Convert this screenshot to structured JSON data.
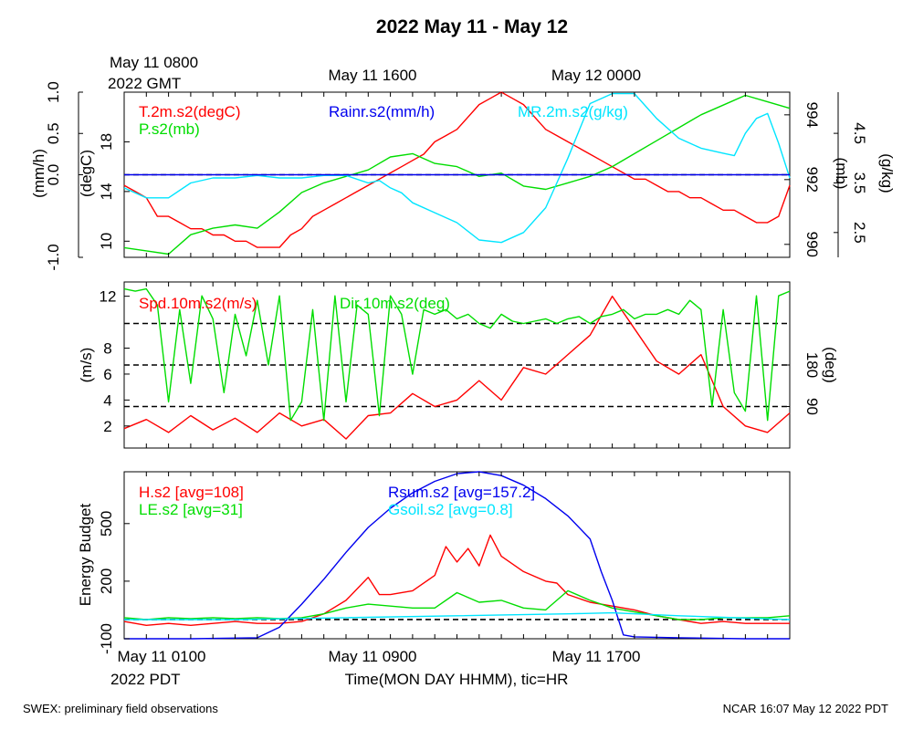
{
  "title": "2022 May 11 - May 12",
  "top_time_labels": [
    "May 11 1600",
    "May 12 0000"
  ],
  "start_gmt": {
    "line1": "May 11 0800",
    "line2": "2022 GMT"
  },
  "bottom_time_labels": [
    "May 11 0100",
    "May 11 0900",
    "May 11 1700"
  ],
  "start_pdt": "2022 PDT",
  "xlabel": "Time(MON DAY HHMM), tic=HR",
  "footer_left": "SWEX: preliminary field observations",
  "footer_right": "NCAR 16:07 May 12 2022 PDT",
  "colors": {
    "red": "#ff0000",
    "green": "#00dd00",
    "blue": "#0000ee",
    "cyan": "#00e5ff",
    "black": "#000000"
  },
  "chart_data": [
    {
      "type": "line",
      "panel": "met",
      "x_unit": "hours since May 11 0100 PDT",
      "xlim": [
        0,
        30
      ],
      "axes": {
        "left_outer": {
          "label": "(mm/h)",
          "ticks": [
            "-1.0",
            "0.0",
            "0.5",
            "1.0"
          ],
          "ylim": [
            -1.0,
            1.0
          ]
        },
        "left_inner": {
          "label": "(degC)",
          "ticks": [
            "10",
            "14",
            "18"
          ],
          "ylim": [
            8.7,
            22.0
          ]
        },
        "right_inner": {
          "label": "(mb)",
          "ticks": [
            "990",
            "992",
            "994"
          ],
          "ylim": [
            989.6,
            994.7
          ]
        },
        "right_outer": {
          "label": "(g/kg)",
          "ticks": [
            "2.5",
            "3.5",
            "4.5"
          ],
          "ylim": [
            2.0,
            5.33
          ]
        }
      },
      "series": [
        {
          "name": "T.2m.s2(degC)",
          "color": "#ff0000",
          "axis": "left_inner",
          "x": [
            0,
            0.5,
            1,
            1.5,
            2,
            2.5,
            3,
            3.5,
            4,
            4.5,
            5,
            5.5,
            6,
            6.5,
            7,
            7.5,
            8,
            8.5,
            9,
            9.5,
            10,
            10.5,
            11,
            11.5,
            12,
            12.5,
            13,
            13.5,
            14,
            14.5,
            15,
            15.5,
            16,
            16.5,
            17,
            17.5,
            18,
            18.5,
            19,
            19.5,
            20,
            20.5,
            21,
            21.5,
            22,
            22.5,
            23,
            23.5,
            24,
            24.5,
            25,
            25.5,
            26,
            26.5,
            27,
            27.5,
            28,
            28.5,
            29,
            29.5,
            30
          ],
          "y": [
            14.5,
            14.0,
            13.5,
            12.0,
            12.0,
            11.5,
            11.0,
            11.0,
            10.5,
            10.5,
            10.0,
            10.0,
            9.5,
            9.5,
            9.5,
            10.5,
            11.0,
            12.0,
            12.5,
            13.0,
            13.5,
            14.0,
            14.5,
            15.0,
            15.5,
            16.0,
            16.5,
            17.0,
            18.0,
            18.5,
            19.0,
            20.0,
            21.0,
            21.5,
            22.0,
            21.5,
            21.0,
            20.0,
            19.0,
            18.5,
            18.0,
            17.5,
            17.0,
            16.5,
            16.0,
            15.5,
            15.0,
            15.0,
            14.5,
            14.0,
            14.0,
            13.5,
            13.5,
            13.0,
            12.5,
            12.5,
            12.0,
            11.5,
            11.5,
            12.0,
            14.5
          ]
        },
        {
          "name": "P.s2(mb)",
          "color": "#00dd00",
          "axis": "right_inner",
          "x": [
            0,
            1,
            2,
            3,
            4,
            5,
            6,
            7,
            8,
            9,
            10,
            11,
            12,
            13,
            14,
            15,
            16,
            17,
            18,
            19,
            20,
            21,
            22,
            23,
            24,
            25,
            26,
            27,
            28,
            29,
            30
          ],
          "y": [
            989.9,
            989.8,
            989.7,
            990.3,
            990.5,
            990.6,
            990.5,
            991.0,
            991.6,
            991.9,
            992.1,
            992.3,
            992.7,
            992.8,
            992.5,
            992.4,
            992.1,
            992.2,
            991.8,
            991.7,
            991.9,
            992.1,
            992.4,
            992.8,
            993.2,
            993.6,
            994.0,
            994.3,
            994.6,
            994.4,
            994.2
          ]
        },
        {
          "name": "MR.2m.s2(g/kg)",
          "color": "#00e5ff",
          "axis": "right_outer",
          "x": [
            0,
            1,
            2,
            3,
            4,
            5,
            6,
            7,
            8,
            9,
            10,
            11,
            11.5,
            12,
            12.5,
            13,
            14,
            15,
            16,
            17,
            18,
            19,
            19.5,
            20,
            21,
            22,
            23,
            24,
            25,
            26,
            27,
            27.5,
            28,
            28.5,
            29,
            29.5,
            30
          ],
          "y": [
            3.4,
            3.2,
            3.2,
            3.5,
            3.6,
            3.6,
            3.65,
            3.6,
            3.6,
            3.65,
            3.65,
            3.5,
            3.55,
            3.4,
            3.3,
            3.1,
            2.9,
            2.7,
            2.35,
            2.3,
            2.5,
            3.0,
            3.5,
            4.0,
            5.1,
            5.3,
            5.3,
            4.8,
            4.4,
            4.2,
            4.1,
            4.05,
            4.5,
            4.8,
            4.9,
            4.3,
            3.6
          ]
        },
        {
          "name": "Rainr.s2(mm/h)",
          "color": "#0000ee",
          "axis": "left_outer",
          "x": [
            0,
            30
          ],
          "y": [
            0,
            0
          ]
        }
      ],
      "reference_lines": [
        {
          "axis": "left_outer",
          "y": 0.0
        }
      ]
    },
    {
      "type": "line",
      "panel": "wind",
      "x_unit": "hours since May 11 0100 PDT",
      "xlim": [
        0,
        30
      ],
      "axes": {
        "left": {
          "label": "(m/s)",
          "ticks": [
            "2",
            "4",
            "6",
            "8",
            "12"
          ],
          "ylim": [
            0.3,
            13.1
          ]
        },
        "right": {
          "label": "(deg)",
          "ticks": [
            "90",
            "180"
          ],
          "ylim": [
            0,
            360
          ]
        }
      },
      "series": [
        {
          "name": "Spd.10m.s2(m/s)",
          "color": "#ff0000",
          "axis": "left",
          "x": [
            0,
            1,
            2,
            3,
            4,
            5,
            6,
            7,
            8,
            9,
            10,
            11,
            12,
            13,
            14,
            15,
            16,
            17,
            18,
            19,
            20,
            21,
            22,
            23,
            24,
            25,
            26,
            27,
            28,
            29,
            30
          ],
          "y": [
            1.8,
            2.5,
            1.5,
            2.8,
            1.7,
            2.6,
            1.5,
            3.0,
            2.0,
            2.5,
            1.0,
            2.8,
            3.0,
            4.5,
            3.5,
            4.0,
            5.5,
            4.0,
            6.5,
            6.0,
            7.5,
            9.0,
            12.0,
            9.5,
            7.0,
            6.0,
            7.5,
            3.5,
            2.0,
            1.5,
            3.0
          ]
        },
        {
          "name": "Dir.10m.s2(deg)",
          "color": "#00dd00",
          "axis": "right",
          "x": [
            0,
            0.5,
            1,
            1.5,
            2,
            2.5,
            3,
            3.5,
            4,
            4.5,
            5,
            5.5,
            6,
            6.5,
            7,
            7.5,
            8,
            8.5,
            9,
            9.5,
            10,
            10.5,
            11,
            11.5,
            12,
            12.5,
            13,
            13.5,
            14,
            14.5,
            15,
            15.5,
            16,
            16.5,
            17,
            17.5,
            18,
            18.5,
            19,
            19.5,
            20,
            20.5,
            21,
            21.5,
            22,
            22.5,
            23,
            23.5,
            24,
            24.5,
            25,
            25.5,
            26,
            26.5,
            27,
            27.5,
            28,
            28.5,
            29,
            29.5,
            30
          ],
          "y": [
            345,
            340,
            345,
            310,
            100,
            300,
            140,
            330,
            280,
            120,
            290,
            200,
            320,
            180,
            330,
            60,
            100,
            300,
            60,
            330,
            100,
            310,
            290,
            70,
            330,
            290,
            160,
            300,
            290,
            300,
            280,
            290,
            270,
            260,
            290,
            275,
            270,
            275,
            280,
            270,
            280,
            285,
            270,
            285,
            290,
            300,
            280,
            290,
            290,
            300,
            290,
            320,
            300,
            90,
            300,
            120,
            80,
            330,
            60,
            330,
            340
          ]
        }
      ],
      "reference_lines": [
        {
          "axis": "right",
          "y": 90
        },
        {
          "axis": "right",
          "y": 180
        },
        {
          "axis": "right",
          "y": 270
        }
      ]
    },
    {
      "type": "line",
      "panel": "energy",
      "x_unit": "hours since May 11 0100 PDT",
      "xlim": [
        0,
        30
      ],
      "axes": {
        "left": {
          "label": "Energy Budget",
          "ticks": [
            "-100",
            "200",
            "500"
          ],
          "ylim": [
            -100,
            770
          ]
        }
      },
      "series": [
        {
          "name": "H.s2 [avg=108]",
          "color": "#ff0000",
          "x": [
            0,
            1,
            2,
            3,
            4,
            5,
            6,
            7,
            8,
            9,
            10,
            11,
            11.5,
            12,
            13,
            14,
            14.5,
            15,
            15.5,
            16,
            16.5,
            17,
            18,
            19,
            19.5,
            20,
            21,
            22,
            23,
            24,
            25,
            26,
            27,
            28,
            29,
            30
          ],
          "y": [
            -10,
            -30,
            -20,
            -30,
            -20,
            -10,
            -20,
            -20,
            -10,
            30,
            100,
            220,
            130,
            130,
            150,
            230,
            380,
            300,
            370,
            280,
            440,
            330,
            250,
            200,
            190,
            130,
            90,
            70,
            50,
            20,
            0,
            -20,
            -10,
            -20,
            -20,
            -20
          ]
        },
        {
          "name": "LE.s2 [avg=31]",
          "color": "#00dd00",
          "x": [
            0,
            1,
            2,
            3,
            4,
            5,
            6,
            7,
            8,
            9,
            10,
            11,
            12,
            13,
            14,
            15,
            16,
            17,
            18,
            19,
            20,
            21,
            22,
            23,
            24,
            25,
            26,
            27,
            28,
            29,
            30
          ],
          "y": [
            10,
            0,
            10,
            5,
            10,
            5,
            10,
            5,
            10,
            30,
            60,
            80,
            70,
            60,
            60,
            140,
            90,
            100,
            60,
            50,
            150,
            100,
            60,
            40,
            20,
            0,
            0,
            10,
            10,
            10,
            20
          ]
        },
        {
          "name": "Rsum.s2 [avg=157.2]",
          "color": "#0000ee",
          "x": [
            0,
            3,
            6,
            7,
            8,
            9,
            10,
            11,
            12,
            13,
            14,
            15,
            16,
            17,
            18,
            19,
            20,
            21,
            21.5,
            22,
            22.5,
            23,
            25,
            28,
            30
          ],
          "y": [
            -100,
            -100,
            -95,
            -40,
            80,
            210,
            350,
            480,
            580,
            660,
            720,
            760,
            770,
            750,
            700,
            630,
            540,
            420,
            250,
            100,
            -80,
            -90,
            -95,
            -100,
            -100
          ]
        },
        {
          "name": "Gsoil.s2 [avg=0.8]",
          "color": "#00e5ff",
          "x": [
            0,
            5,
            10,
            15,
            20,
            22,
            25,
            30
          ],
          "y": [
            0,
            0,
            10,
            20,
            30,
            35,
            20,
            0
          ]
        }
      ],
      "reference_lines": [
        {
          "y": 0
        }
      ]
    }
  ]
}
